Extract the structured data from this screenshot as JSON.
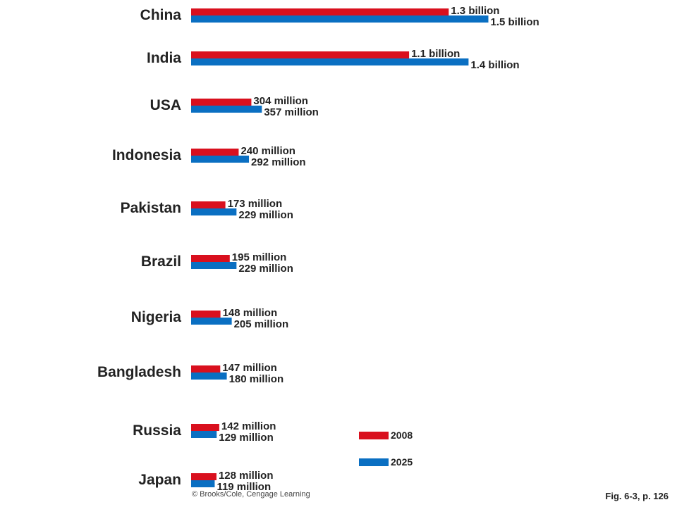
{
  "chart_data": {
    "type": "bar",
    "orientation": "horizontal",
    "categories": [
      "China",
      "India",
      "USA",
      "Indonesia",
      "Pakistan",
      "Brazil",
      "Nigeria",
      "Bangladesh",
      "Russia",
      "Japan"
    ],
    "series": [
      {
        "name": "2008",
        "color": "#d9101e",
        "values": [
          1300,
          1100,
          304,
          240,
          173,
          195,
          148,
          147,
          142,
          128
        ],
        "labels": [
          "1.3 billion",
          "1.1 billion",
          "304 million",
          "240 million",
          "173 million",
          "195 million",
          "148 million",
          "147 million",
          "142 million",
          "128 million"
        ]
      },
      {
        "name": "2025",
        "color": "#0a6fc2",
        "values": [
          1500,
          1400,
          357,
          292,
          229,
          229,
          205,
          180,
          129,
          119
        ],
        "labels": [
          "1.5 billion",
          "1.4 billion",
          "357 million",
          "292 million",
          "229 million",
          "229 million",
          "205 million",
          "180 million",
          "129 million",
          "119 million"
        ]
      }
    ],
    "unit": "millions",
    "legend_position": "bottom-center"
  },
  "caption": "Fig. 6-3, p. 126",
  "credit": "© Brooks/Cole, Cengage Learning"
}
